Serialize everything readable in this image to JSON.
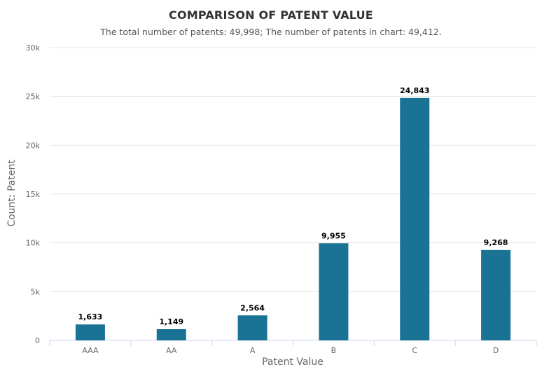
{
  "chart_data": {
    "type": "bar",
    "title": "COMPARISON OF PATENT VALUE",
    "subtitle": "The total number of patents: 49,998; The number of patents in chart: 49,412.",
    "xlabel": "Patent Value",
    "ylabel": "Count: Patent",
    "categories": [
      "AAA",
      "AA",
      "A",
      "B",
      "C",
      "D"
    ],
    "values": [
      1633,
      1149,
      2564,
      9955,
      24843,
      9268
    ],
    "data_labels": [
      "1,633",
      "1,149",
      "2,564",
      "9,955",
      "24,843",
      "9,268"
    ],
    "ylim": [
      0,
      30000
    ],
    "yticks": [
      0,
      5000,
      10000,
      15000,
      20000,
      25000,
      30000
    ],
    "ytick_labels": [
      "0",
      "5k",
      "10k",
      "15k",
      "20k",
      "25k",
      "30k"
    ],
    "grid": true,
    "legend": "none",
    "bar_color": "#1a7395",
    "grid_color": "#e6e6e6",
    "axis_color": "#ccd6eb"
  }
}
